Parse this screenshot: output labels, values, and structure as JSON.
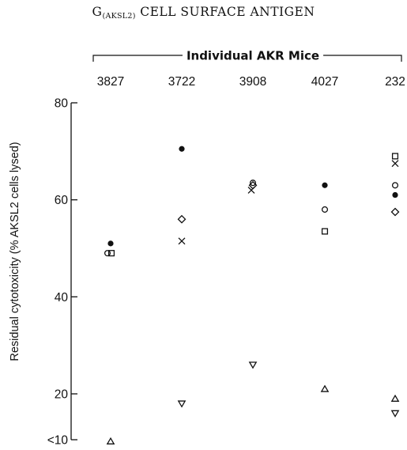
{
  "page": {
    "title_main": "G",
    "title_sub": "(AKSL2)",
    "title_rest": " CELL SURFACE ANTIGEN"
  },
  "chart_data": {
    "type": "scatter",
    "title": "G(AKSL2) CELL SURFACE ANTIGEN",
    "group_label": "Individual AKR Mice",
    "categories": [
      "3827",
      "3722",
      "3908",
      "4027",
      "232"
    ],
    "ylabel": "Residual cytotoxicity (% AKSL2 cells lysed)",
    "ylim": [
      10,
      80
    ],
    "yticks": [
      {
        "value": 10,
        "label": "<10"
      },
      {
        "value": 20,
        "label": "20"
      },
      {
        "value": 40,
        "label": "40"
      },
      {
        "value": 60,
        "label": "60"
      },
      {
        "value": 80,
        "label": "80"
      }
    ],
    "grid": false,
    "series": [
      {
        "marker": "filled-circle",
        "values": [
          51,
          70.5,
          null,
          63,
          61
        ]
      },
      {
        "marker": "open-circle",
        "values": [
          49,
          null,
          63.5,
          58,
          63
        ]
      },
      {
        "marker": "open-square",
        "values": [
          49,
          null,
          null,
          53.5,
          69
        ]
      },
      {
        "marker": "cross",
        "values": [
          null,
          51.5,
          62,
          null,
          67.5
        ]
      },
      {
        "marker": "open-diamond",
        "values": [
          null,
          56,
          63,
          null,
          57.5
        ]
      },
      {
        "marker": "triangle-up",
        "values": [
          10.2,
          null,
          null,
          21,
          19
        ]
      },
      {
        "marker": "triangle-down",
        "values": [
          null,
          18,
          26,
          null,
          16
        ]
      }
    ]
  }
}
